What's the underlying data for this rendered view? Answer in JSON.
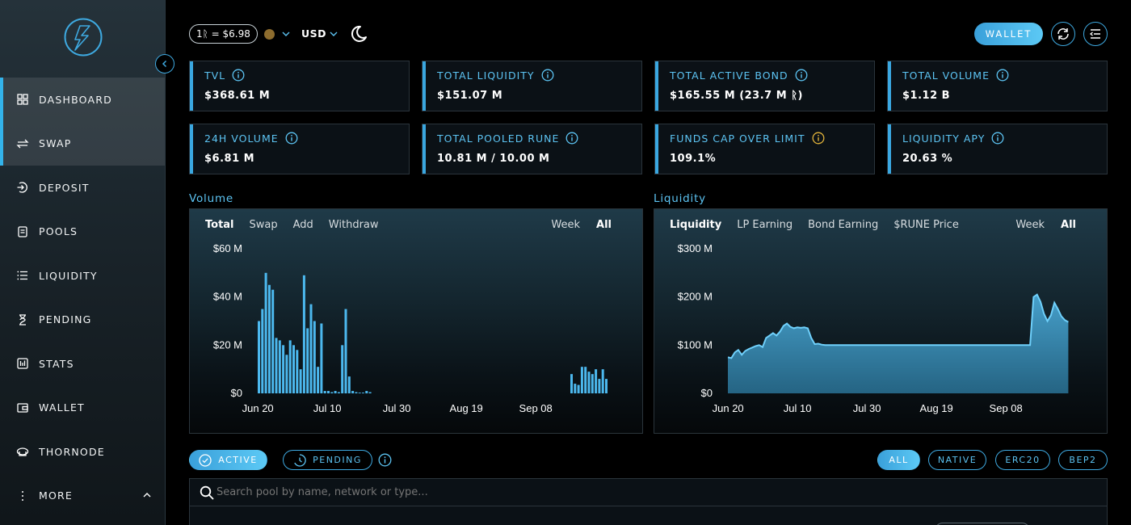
{
  "sidebar": {
    "items": [
      {
        "label": "DASHBOARD",
        "icon": "grid-icon",
        "active": true
      },
      {
        "label": "SWAP",
        "icon": "swap-icon",
        "active": true
      },
      {
        "label": "DEPOSIT",
        "icon": "deposit-icon"
      },
      {
        "label": "POOLS",
        "icon": "pools-icon"
      },
      {
        "label": "LIQUIDITY",
        "icon": "list-icon"
      },
      {
        "label": "PENDING",
        "icon": "hourglass-icon"
      },
      {
        "label": "STATS",
        "icon": "stats-icon"
      },
      {
        "label": "WALLET",
        "icon": "wallet-icon"
      },
      {
        "label": "THORNODE",
        "icon": "node-icon"
      },
      {
        "label": "MORE",
        "icon": "more-icon"
      }
    ]
  },
  "topbar": {
    "rate": "1ᚱ = $6.98",
    "currency": "USD",
    "wallet_label": "WALLET"
  },
  "stats": [
    {
      "label": "TVL",
      "value": "$368.61 M",
      "info_color": "#5cc3f2"
    },
    {
      "label": "TOTAL LIQUIDITY",
      "value": "$151.07 M",
      "info_color": "#5cc3f2"
    },
    {
      "label": "TOTAL ACTIVE BOND",
      "value": "$165.55 M (23.7 M ᚱ)",
      "info_color": "#5cc3f2"
    },
    {
      "label": "TOTAL VOLUME",
      "value": "$1.12 B",
      "info_color": "#5cc3f2"
    },
    {
      "label": "24H VOLUME",
      "value": "$6.81 M",
      "info_color": "#5cc3f2"
    },
    {
      "label": "TOTAL POOLED RUNE",
      "value": "10.81 M / 10.00 M",
      "info_color": "#5cc3f2"
    },
    {
      "label": "FUNDS CAP OVER LIMIT",
      "value": "109.1%",
      "info_color": "#e0b23a"
    },
    {
      "label": "LIQUIDITY APY",
      "value": "20.63 %",
      "info_color": "#5cc3f2"
    }
  ],
  "volume_section": {
    "title": "Volume",
    "tabs": [
      "Total",
      "Swap",
      "Add",
      "Withdraw"
    ],
    "ranges": [
      "Week",
      "All"
    ]
  },
  "liquidity_section": {
    "title": "Liquidity",
    "tabs": [
      "Liquidity",
      "LP Earning",
      "Bond Earning",
      "$RUNE Price"
    ],
    "ranges": [
      "Week",
      "All"
    ]
  },
  "chart_data": [
    {
      "type": "bar",
      "title": "",
      "y_tick_labels": [
        "$0",
        "$20 M",
        "$40 M",
        "$60 M"
      ],
      "ylim": [
        0,
        60
      ],
      "x_tick_labels": [
        "Jun 20",
        "Jul 10",
        "Jul 30",
        "Aug 19",
        "Sep 08"
      ],
      "x_tick_index": [
        0,
        20,
        40,
        60,
        80
      ],
      "values": [
        30,
        35,
        50,
        45,
        43,
        23,
        22,
        20,
        16,
        22,
        20,
        18,
        10,
        49,
        27,
        37,
        30,
        11,
        29,
        1,
        1,
        0.5,
        1,
        0.5,
        20,
        35,
        7,
        1,
        0.5,
        0.3,
        0.3,
        1,
        0.5,
        0,
        0,
        0,
        0,
        0,
        0,
        0,
        0,
        0,
        0,
        0,
        0,
        0,
        0,
        0,
        0,
        0,
        0,
        0,
        0,
        0,
        0,
        0,
        0,
        0,
        0,
        0,
        0,
        0,
        0,
        0,
        0,
        0,
        0,
        0,
        0,
        0,
        0,
        0,
        0,
        0,
        0,
        0,
        0,
        0,
        0,
        0,
        0,
        0,
        0,
        0,
        0,
        0,
        0,
        0,
        0,
        0,
        8,
        4,
        3.5,
        11,
        11,
        9,
        8,
        10,
        6,
        10,
        6
      ]
    },
    {
      "type": "area",
      "title": "",
      "y_tick_labels": [
        "$0",
        "$100 M",
        "$200 M",
        "$300 M"
      ],
      "ylim": [
        0,
        300
      ],
      "x_tick_labels": [
        "Jun 20",
        "Jul 10",
        "Jul 30",
        "Aug 19",
        "Sep 08"
      ],
      "x_tick_index": [
        0,
        20,
        40,
        60,
        80
      ],
      "values": [
        75,
        73,
        85,
        90,
        80,
        88,
        92,
        95,
        98,
        100,
        96,
        115,
        120,
        125,
        120,
        128,
        140,
        145,
        138,
        135,
        137,
        136,
        137,
        135,
        115,
        102,
        103,
        101,
        100,
        100,
        100,
        100,
        100,
        100,
        100,
        100,
        100,
        100,
        100,
        100,
        100,
        100,
        100,
        100,
        100,
        100,
        100,
        100,
        100,
        100,
        100,
        100,
        100,
        100,
        100,
        100,
        100,
        100,
        100,
        100,
        100,
        100,
        100,
        100,
        100,
        100,
        100,
        100,
        100,
        100,
        100,
        100,
        100,
        100,
        100,
        100,
        100,
        100,
        100,
        100,
        100,
        100,
        100,
        100,
        100,
        100,
        100,
        100,
        200,
        205,
        190,
        165,
        150,
        162,
        188,
        175,
        160,
        152,
        148
      ]
    }
  ],
  "filters": {
    "active": "ACTIVE",
    "pending": "PENDING",
    "types": [
      "ALL",
      "NATIVE",
      "ERC20",
      "BEP2"
    ]
  },
  "search": {
    "placeholder": "Search pool by name, network or type..."
  }
}
